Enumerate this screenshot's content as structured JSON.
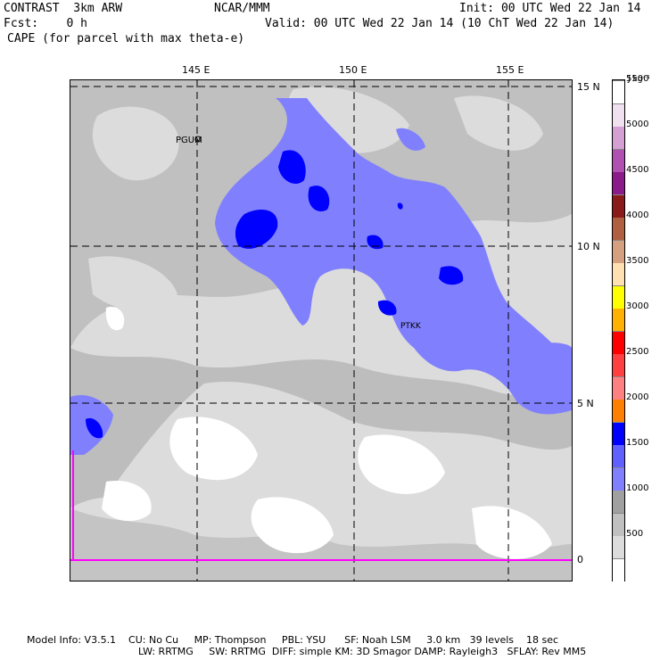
{
  "header": {
    "model": "CONTRAST  3km ARW",
    "org": "NCAR/MMM",
    "init": "Init: 00 UTC Wed 22 Jan 14",
    "fcst": "Fcst:    0 h",
    "valid": "Valid: 00 UTC Wed 22 Jan 14 (10 ChT Wed 22 Jan 14)",
    "field": "CAPE (for parcel with max theta-e)"
  },
  "axes": {
    "lon_labels": [
      "145 E",
      "150 E",
      "155 E"
    ],
    "lat_labels": [
      "15 N",
      "10 N",
      "5 N",
      "0"
    ]
  },
  "stations": [
    "PGUM",
    "PTKK"
  ],
  "colorbar": {
    "units": "J kg⁻¹",
    "labels": [
      "5500",
      "5000",
      "4500",
      "4000",
      "3500",
      "3000",
      "2500",
      "2000",
      "1500",
      "1000",
      "500"
    ],
    "colors": [
      "#ffffff",
      "#dcdcdc",
      "#c0c0c0",
      "#a0a0a0",
      "#8080ff",
      "#6060ff",
      "#0000ff",
      "#ff8000",
      "#ff8080",
      "#ff4040",
      "#ff0000",
      "#ffb000",
      "#ffff00",
      "#ffe0b0",
      "#d4a080",
      "#b06040",
      "#8b1a1a",
      "#8b1a8b",
      "#b050b0",
      "#d4a0d4",
      "#f0e0f0",
      "#ffffff"
    ]
  },
  "footer": {
    "line1": "Model Info: V3.5.1    CU: No Cu     MP: Thompson     PBL: YSU      SF: Noah LSM     3.0 km   39 levels    18 sec",
    "line2": "LW: RRTMG     SW: RRTMG  DIFF: simple KM: 3D Smagor DAMP: Rayleigh3   SFLAY: Rev MM5"
  }
}
